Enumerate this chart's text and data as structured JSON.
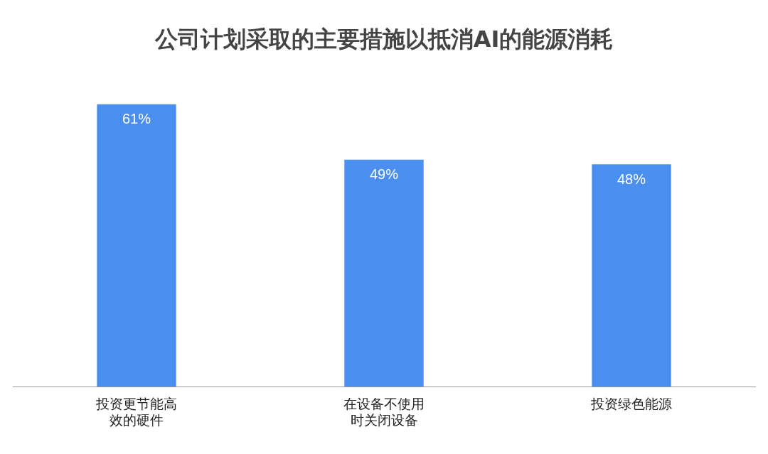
{
  "chart_data": {
    "type": "bar",
    "title": "公司计划采取的主要措施以抵消AI的能源消耗",
    "categories": [
      "投资更节能高效的硬件",
      "在设备不使用时关闭设备",
      "投资绿色能源"
    ],
    "values": [
      61,
      49,
      48
    ],
    "color": "#4a8ef0",
    "value_labels": [
      "61%",
      "49%",
      "48%"
    ],
    "grid": false,
    "legend": false
  }
}
